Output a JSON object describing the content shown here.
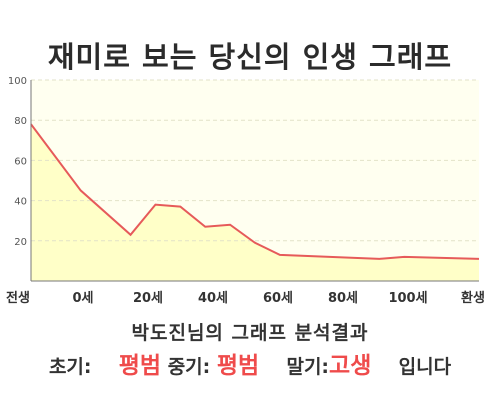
{
  "title": "재미로 보는 당신의 인생 그래프",
  "chart_data": {
    "type": "area",
    "x_labels": [
      "전생",
      "0세",
      "20세",
      "40세",
      "60세",
      "80세",
      "100세",
      "환생"
    ],
    "points": [
      {
        "x": 0,
        "y": 78
      },
      {
        "x": 2,
        "y": 45
      },
      {
        "x": 4,
        "y": 23
      },
      {
        "x": 5,
        "y": 38
      },
      {
        "x": 6,
        "y": 37
      },
      {
        "x": 7,
        "y": 27
      },
      {
        "x": 8,
        "y": 28
      },
      {
        "x": 9,
        "y": 19
      },
      {
        "x": 10,
        "y": 13
      },
      {
        "x": 12,
        "y": 12
      },
      {
        "x": 14,
        "y": 11
      },
      {
        "x": 15,
        "y": 12
      },
      {
        "x": 18,
        "y": 11
      }
    ],
    "y_ticks": [
      20,
      40,
      60,
      80,
      100
    ],
    "ylim": [
      0,
      100
    ],
    "xlim": [
      0,
      18
    ],
    "grid": true,
    "line_color": "#e65a5a",
    "fill_color": "#ffffc8",
    "plot_bg": "#fffff0"
  },
  "result": {
    "name_line": "박도진님의 그래프 분석결과",
    "early_label": "초기:",
    "early_value": "평범",
    "mid_label": "중기:",
    "mid_value": "평범",
    "late_label": "말기:",
    "late_value": "고생",
    "ending": "입니다"
  }
}
